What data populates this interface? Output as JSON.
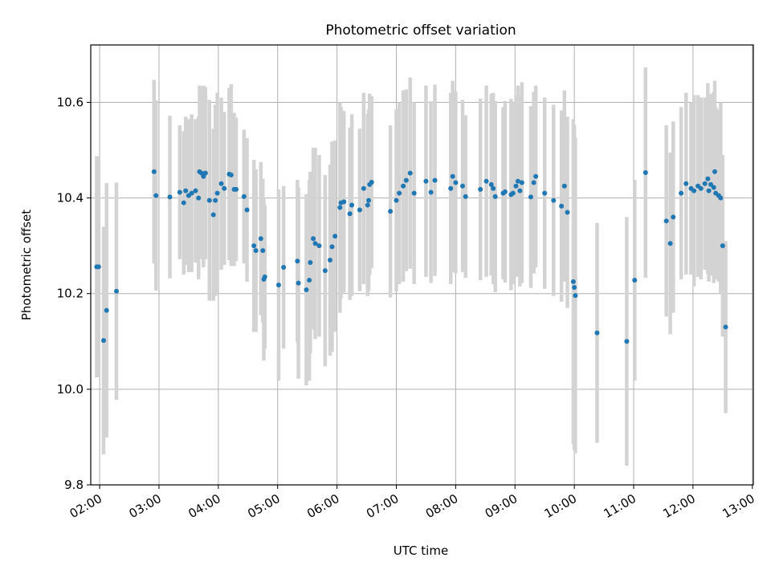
{
  "chart_data": {
    "type": "scatter",
    "title": "Photometric offset variation",
    "xlabel": "UTC time",
    "ylabel": "Photometric offset",
    "xlim": [
      "01:51",
      "13:01"
    ],
    "ylim": [
      9.8,
      10.72
    ],
    "grid": true,
    "x_ticks": [
      "02:00",
      "03:00",
      "04:00",
      "05:00",
      "06:00",
      "07:00",
      "08:00",
      "09:00",
      "10:00",
      "11:00",
      "12:00",
      "13:00"
    ],
    "y_ticks": [
      9.8,
      10.0,
      10.2,
      10.4,
      10.6
    ],
    "y_tick_labels": [
      "9.8",
      "10.0",
      "10.2",
      "10.4",
      "10.6"
    ],
    "point_color": "#1f77b4",
    "errorbar_color": "#d3d3d3",
    "points": [
      {
        "time": "01:57",
        "y": 10.256,
        "err": 0.231
      },
      {
        "time": "01:59",
        "y": 10.256,
        "err": 0.231
      },
      {
        "time": "02:04",
        "y": 10.102,
        "err": 0.238
      },
      {
        "time": "02:07",
        "y": 10.165,
        "err": 0.266
      },
      {
        "time": "02:17",
        "y": 10.205,
        "err": 0.227
      },
      {
        "time": "02:55",
        "y": 10.455,
        "err": 0.192
      },
      {
        "time": "02:57",
        "y": 10.405,
        "err": 0.199
      },
      {
        "time": "03:11",
        "y": 10.402,
        "err": 0.17
      },
      {
        "time": "03:21",
        "y": 10.412,
        "err": 0.14
      },
      {
        "time": "03:25",
        "y": 10.39,
        "err": 0.15
      },
      {
        "time": "03:27",
        "y": 10.415,
        "err": 0.155
      },
      {
        "time": "03:30",
        "y": 10.405,
        "err": 0.16
      },
      {
        "time": "03:33",
        "y": 10.41,
        "err": 0.165
      },
      {
        "time": "03:37",
        "y": 10.415,
        "err": 0.15
      },
      {
        "time": "03:40",
        "y": 10.4,
        "err": 0.17
      },
      {
        "time": "03:41",
        "y": 10.455,
        "err": 0.18
      },
      {
        "time": "03:43",
        "y": 10.452,
        "err": 0.18
      },
      {
        "time": "03:45",
        "y": 10.445,
        "err": 0.19
      },
      {
        "time": "03:47",
        "y": 10.452,
        "err": 0.18
      },
      {
        "time": "03:51",
        "y": 10.395,
        "err": 0.21
      },
      {
        "time": "03:55",
        "y": 10.365,
        "err": 0.18
      },
      {
        "time": "03:57",
        "y": 10.395,
        "err": 0.2
      },
      {
        "time": "03:59",
        "y": 10.41,
        "err": 0.21
      },
      {
        "time": "04:03",
        "y": 10.43,
        "err": 0.18
      },
      {
        "time": "04:06",
        "y": 10.42,
        "err": 0.16
      },
      {
        "time": "04:11",
        "y": 10.45,
        "err": 0.18
      },
      {
        "time": "04:13",
        "y": 10.448,
        "err": 0.19
      },
      {
        "time": "04:16",
        "y": 10.418,
        "err": 0.16
      },
      {
        "time": "04:18",
        "y": 10.418,
        "err": 0.15
      },
      {
        "time": "04:26",
        "y": 10.403,
        "err": 0.14
      },
      {
        "time": "04:29",
        "y": 10.375,
        "err": 0.15
      },
      {
        "time": "04:36",
        "y": 10.3,
        "err": 0.18
      },
      {
        "time": "04:38",
        "y": 10.29,
        "err": 0.17
      },
      {
        "time": "04:43",
        "y": 10.315,
        "err": 0.16
      },
      {
        "time": "04:45",
        "y": 10.29,
        "err": 0.15
      },
      {
        "time": "04:46",
        "y": 10.23,
        "err": 0.17
      },
      {
        "time": "04:47",
        "y": 10.235,
        "err": 0.15
      },
      {
        "time": "05:01",
        "y": 10.218,
        "err": 0.2
      },
      {
        "time": "05:06",
        "y": 10.255,
        "err": 0.17
      },
      {
        "time": "05:20",
        "y": 10.268,
        "err": 0.17
      },
      {
        "time": "05:21",
        "y": 10.222,
        "err": 0.2
      },
      {
        "time": "05:29",
        "y": 10.208,
        "err": 0.2
      },
      {
        "time": "05:32",
        "y": 10.228,
        "err": 0.21
      },
      {
        "time": "05:33",
        "y": 10.265,
        "err": 0.19
      },
      {
        "time": "05:36",
        "y": 10.315,
        "err": 0.19
      },
      {
        "time": "05:38",
        "y": 10.305,
        "err": 0.2
      },
      {
        "time": "05:42",
        "y": 10.3,
        "err": 0.19
      },
      {
        "time": "05:48",
        "y": 10.248,
        "err": 0.2
      },
      {
        "time": "05:53",
        "y": 10.27,
        "err": 0.2
      },
      {
        "time": "05:55",
        "y": 10.298,
        "err": 0.22
      },
      {
        "time": "05:58",
        "y": 10.32,
        "err": 0.2
      },
      {
        "time": "06:03",
        "y": 10.38,
        "err": 0.22
      },
      {
        "time": "06:04",
        "y": 10.39,
        "err": 0.2
      },
      {
        "time": "06:07",
        "y": 10.392,
        "err": 0.19
      },
      {
        "time": "06:13",
        "y": 10.367,
        "err": 0.18
      },
      {
        "time": "06:15",
        "y": 10.385,
        "err": 0.19
      },
      {
        "time": "06:23",
        "y": 10.375,
        "err": 0.17
      },
      {
        "time": "06:27",
        "y": 10.42,
        "err": 0.2
      },
      {
        "time": "06:31",
        "y": 10.385,
        "err": 0.19
      },
      {
        "time": "06:32",
        "y": 10.395,
        "err": 0.19
      },
      {
        "time": "06:33",
        "y": 10.428,
        "err": 0.19
      },
      {
        "time": "06:35",
        "y": 10.433,
        "err": 0.18
      },
      {
        "time": "06:54",
        "y": 10.372,
        "err": 0.18
      },
      {
        "time": "07:00",
        "y": 10.395,
        "err": 0.19
      },
      {
        "time": "07:03",
        "y": 10.41,
        "err": 0.19
      },
      {
        "time": "07:07",
        "y": 10.425,
        "err": 0.2
      },
      {
        "time": "07:10",
        "y": 10.437,
        "err": 0.19
      },
      {
        "time": "07:14",
        "y": 10.452,
        "err": 0.2
      },
      {
        "time": "07:18",
        "y": 10.41,
        "err": 0.19
      },
      {
        "time": "07:30",
        "y": 10.435,
        "err": 0.2
      },
      {
        "time": "07:35",
        "y": 10.412,
        "err": 0.19
      },
      {
        "time": "07:39",
        "y": 10.437,
        "err": 0.2
      },
      {
        "time": "07:55",
        "y": 10.42,
        "err": 0.2
      },
      {
        "time": "07:57",
        "y": 10.445,
        "err": 0.2
      },
      {
        "time": "08:00",
        "y": 10.432,
        "err": 0.19
      },
      {
        "time": "08:07",
        "y": 10.425,
        "err": 0.18
      },
      {
        "time": "08:10",
        "y": 10.403,
        "err": 0.17
      },
      {
        "time": "08:25",
        "y": 10.418,
        "err": 0.19
      },
      {
        "time": "08:31",
        "y": 10.435,
        "err": 0.2
      },
      {
        "time": "08:36",
        "y": 10.428,
        "err": 0.19
      },
      {
        "time": "08:38",
        "y": 10.42,
        "err": 0.2
      },
      {
        "time": "08:40",
        "y": 10.403,
        "err": 0.2
      },
      {
        "time": "08:48",
        "y": 10.41,
        "err": 0.18
      },
      {
        "time": "08:50",
        "y": 10.413,
        "err": 0.19
      },
      {
        "time": "08:56",
        "y": 10.407,
        "err": 0.2
      },
      {
        "time": "08:58",
        "y": 10.41,
        "err": 0.19
      },
      {
        "time": "09:01",
        "y": 10.425,
        "err": 0.19
      },
      {
        "time": "09:03",
        "y": 10.435,
        "err": 0.2
      },
      {
        "time": "09:05",
        "y": 10.415,
        "err": 0.2
      },
      {
        "time": "09:07",
        "y": 10.432,
        "err": 0.21
      },
      {
        "time": "09:16",
        "y": 10.402,
        "err": 0.19
      },
      {
        "time": "09:19",
        "y": 10.432,
        "err": 0.19
      },
      {
        "time": "09:21",
        "y": 10.445,
        "err": 0.19
      },
      {
        "time": "09:30",
        "y": 10.41,
        "err": 0.2
      },
      {
        "time": "09:39",
        "y": 10.395,
        "err": 0.2
      },
      {
        "time": "09:47",
        "y": 10.383,
        "err": 0.2
      },
      {
        "time": "09:50",
        "y": 10.425,
        "err": 0.2
      },
      {
        "time": "09:53",
        "y": 10.37,
        "err": 0.2
      },
      {
        "time": "09:59",
        "y": 10.225,
        "err": 0.34
      },
      {
        "time": "10:00",
        "y": 10.213,
        "err": 0.34
      },
      {
        "time": "10:01",
        "y": 10.196,
        "err": 0.33
      },
      {
        "time": "10:23",
        "y": 10.118,
        "err": 0.23
      },
      {
        "time": "10:53",
        "y": 10.1,
        "err": 0.26
      },
      {
        "time": "11:01",
        "y": 10.228,
        "err": 0.21
      },
      {
        "time": "11:12",
        "y": 10.453,
        "err": 0.22
      },
      {
        "time": "11:33",
        "y": 10.352,
        "err": 0.2
      },
      {
        "time": "11:37",
        "y": 10.305,
        "err": 0.19
      },
      {
        "time": "11:40",
        "y": 10.36,
        "err": 0.2
      },
      {
        "time": "11:48",
        "y": 10.41,
        "err": 0.18
      },
      {
        "time": "11:53",
        "y": 10.43,
        "err": 0.19
      },
      {
        "time": "11:58",
        "y": 10.42,
        "err": 0.18
      },
      {
        "time": "12:01",
        "y": 10.415,
        "err": 0.2
      },
      {
        "time": "12:05",
        "y": 10.425,
        "err": 0.19
      },
      {
        "time": "12:08",
        "y": 10.42,
        "err": 0.19
      },
      {
        "time": "12:12",
        "y": 10.43,
        "err": 0.18
      },
      {
        "time": "12:15",
        "y": 10.44,
        "err": 0.2
      },
      {
        "time": "12:16",
        "y": 10.415,
        "err": 0.19
      },
      {
        "time": "12:18",
        "y": 10.428,
        "err": 0.19
      },
      {
        "time": "12:21",
        "y": 10.422,
        "err": 0.2
      },
      {
        "time": "12:22",
        "y": 10.455,
        "err": 0.19
      },
      {
        "time": "12:23",
        "y": 10.41,
        "err": 0.18
      },
      {
        "time": "12:26",
        "y": 10.405,
        "err": 0.18
      },
      {
        "time": "12:28",
        "y": 10.4,
        "err": 0.2
      },
      {
        "time": "12:30",
        "y": 10.3,
        "err": 0.19
      },
      {
        "time": "12:33",
        "y": 10.13,
        "err": 0.18
      }
    ]
  }
}
